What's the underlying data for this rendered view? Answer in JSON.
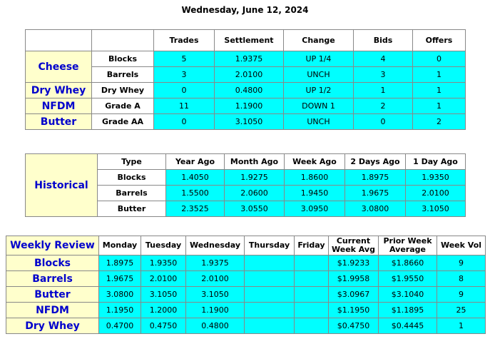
{
  "title": "Wednesday, June 12, 2024",
  "market": {
    "headers": [
      "Trades",
      "Settlement",
      "Change",
      "Bids",
      "Offers"
    ],
    "groups": [
      {
        "name": "Cheese",
        "rows": [
          [
            "Blocks",
            "5",
            "1.9375",
            "UP 1/4",
            "4",
            "0"
          ],
          [
            "Barrels",
            "3",
            "2.0100",
            "UNCH",
            "3",
            "1"
          ]
        ]
      },
      {
        "name": "Dry Whey",
        "rows": [
          [
            "Dry Whey",
            "0",
            "0.4800",
            "UP 1/2",
            "1",
            "1"
          ]
        ]
      },
      {
        "name": "NFDM",
        "rows": [
          [
            "Grade A",
            "11",
            "1.1900",
            "DOWN 1",
            "2",
            "1"
          ]
        ]
      },
      {
        "name": "Butter",
        "rows": [
          [
            "Grade AA",
            "0",
            "3.1050",
            "UNCH",
            "0",
            "2"
          ]
        ]
      }
    ]
  },
  "historical": {
    "label": "Historical",
    "headers": [
      "Type",
      "Year Ago",
      "Month Ago",
      "Week Ago",
      "2 Days Ago",
      "1 Day Ago"
    ],
    "rows": [
      [
        "Blocks",
        "1.4050",
        "1.9275",
        "1.8600",
        "1.8975",
        "1.9350"
      ],
      [
        "Barrels",
        "1.5500",
        "2.0600",
        "1.9450",
        "1.9675",
        "2.0100"
      ],
      [
        "Butter",
        "2.3525",
        "3.0550",
        "3.0950",
        "3.0800",
        "3.1050"
      ]
    ]
  },
  "weekly": {
    "label": "Weekly Review",
    "headers": [
      "Monday",
      "Tuesday",
      "Wednesday",
      "Thursday",
      "Friday",
      "Current Week Avg",
      "Prior Week Average",
      "Week Vol"
    ],
    "rows": [
      [
        "Blocks",
        "1.8975",
        "1.9350",
        "1.9375",
        null,
        null,
        "$1.9233",
        "$1.8660",
        "9"
      ],
      [
        "Barrels",
        "1.9675",
        "2.0100",
        "2.0100",
        null,
        null,
        "$1.9958",
        "$1.9550",
        "8"
      ],
      [
        "Butter",
        "3.0800",
        "3.1050",
        "3.1050",
        null,
        null,
        "$3.0967",
        "$3.1040",
        "9"
      ],
      [
        "NFDM",
        "1.1950",
        "1.2000",
        "1.1900",
        null,
        null,
        "$1.1950",
        "$1.1895",
        "25"
      ],
      [
        "Dry Whey",
        "0.4700",
        "0.4750",
        "0.4800",
        null,
        null,
        "$0.4750",
        "$0.4445",
        "1"
      ]
    ]
  }
}
